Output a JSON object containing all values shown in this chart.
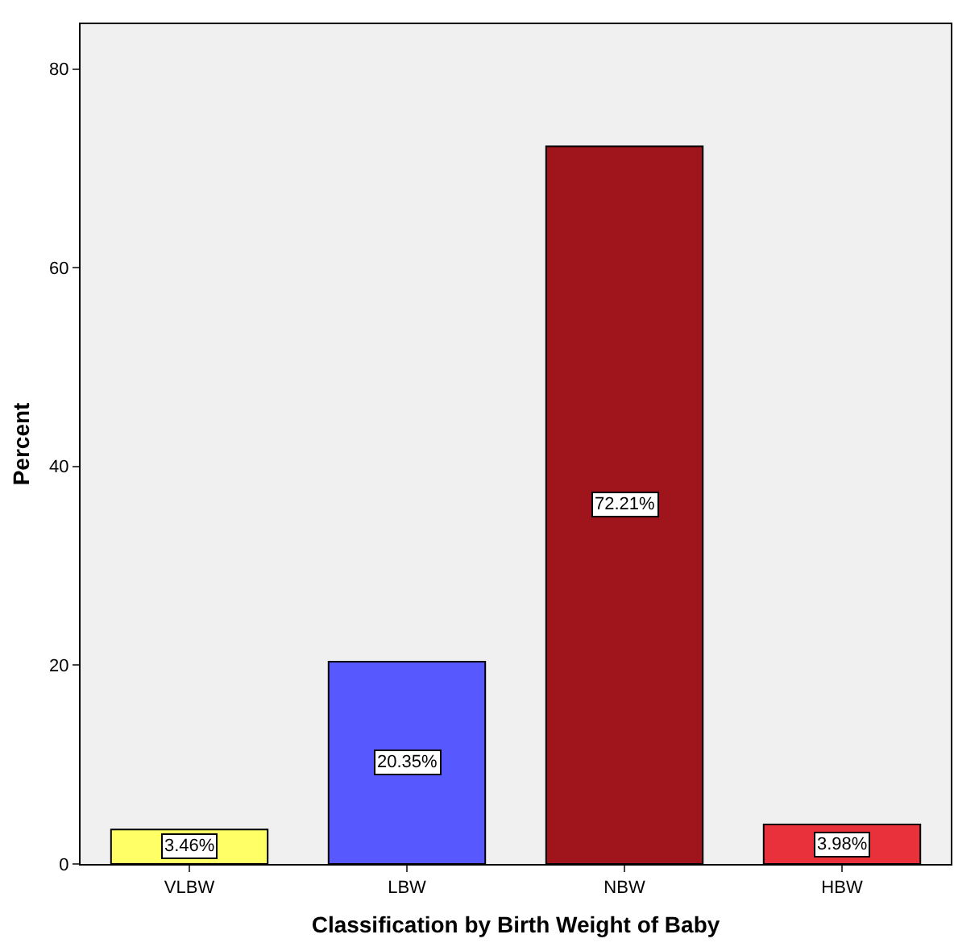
{
  "chart_data": {
    "type": "bar",
    "xlabel": "Classification by Birth Weight of Baby",
    "ylabel": "Percent",
    "categories": [
      "VLBW",
      "LBW",
      "NBW",
      "HBW"
    ],
    "values": [
      3.46,
      20.35,
      72.21,
      3.98
    ],
    "value_labels": [
      "3.46%",
      "20.35%",
      "72.21%",
      "3.98%"
    ],
    "colors": [
      "#ffff66",
      "#5858ff",
      "#a0151b",
      "#e8313a"
    ],
    "ylim": [
      0,
      84.5
    ],
    "yticks": [
      0,
      20,
      40,
      60,
      80
    ],
    "grid": false,
    "legend": false
  }
}
